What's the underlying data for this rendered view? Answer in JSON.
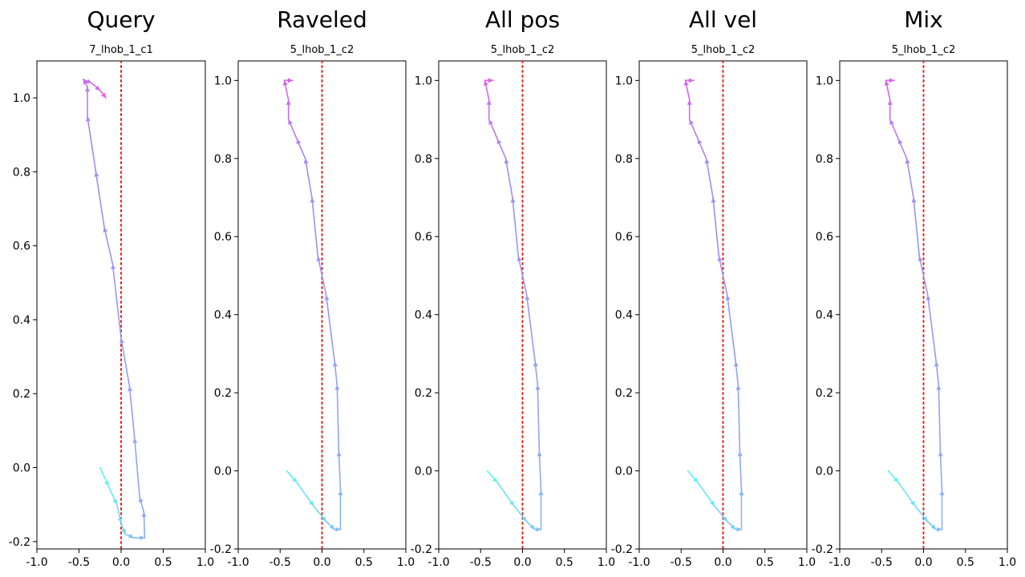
{
  "colors": {
    "reference_line": "#e8241c",
    "trajectory_gradient": [
      "#5ef2f6",
      "#8fa9f8",
      "#9b90f4",
      "#e15cf0"
    ]
  },
  "chart_data": [
    {
      "type": "line",
      "title": "Query",
      "subtitle": "7_lhob_1_c1",
      "xlim": [
        -1.0,
        1.0
      ],
      "ylim": [
        -0.22,
        1.1
      ],
      "xticks": [
        "-1.0",
        "-0.5",
        "0.0",
        "0.5",
        "1.0"
      ],
      "yticks": [
        "-0.2",
        "0.0",
        "0.2",
        "0.4",
        "0.6",
        "0.8",
        "1.0"
      ],
      "reference_x": 0.0,
      "grid": false,
      "points": [
        [
          -0.25,
          0.0
        ],
        [
          -0.15,
          -0.05
        ],
        [
          -0.05,
          -0.1
        ],
        [
          0.0,
          -0.15
        ],
        [
          0.05,
          -0.18
        ],
        [
          0.15,
          -0.19
        ],
        [
          0.28,
          -0.19
        ],
        [
          0.27,
          -0.12
        ],
        [
          0.22,
          -0.08
        ],
        [
          0.16,
          0.08
        ],
        [
          0.1,
          0.22
        ],
        [
          0.0,
          0.35
        ],
        [
          -0.1,
          0.55
        ],
        [
          -0.2,
          0.65
        ],
        [
          -0.3,
          0.8
        ],
        [
          -0.4,
          0.95
        ],
        [
          -0.4,
          1.03
        ],
        [
          -0.45,
          1.05
        ],
        [
          -0.35,
          1.04
        ],
        [
          -0.25,
          1.02
        ],
        [
          -0.18,
          1.0
        ]
      ]
    },
    {
      "type": "line",
      "title": "Raveled",
      "subtitle": "5_lhob_1_c2",
      "xlim": [
        -1.0,
        1.0
      ],
      "ylim": [
        -0.2,
        1.05
      ],
      "xticks": [
        "-1.0",
        "-0.5",
        "0.0",
        "0.5",
        "1.0"
      ],
      "yticks": [
        "-0.2",
        "0.0",
        "0.2",
        "0.4",
        "0.6",
        "0.8",
        "1.0"
      ],
      "reference_x": 0.0,
      "grid": false,
      "points": [
        [
          -0.42,
          0.0
        ],
        [
          -0.3,
          -0.03
        ],
        [
          -0.1,
          -0.09
        ],
        [
          0.05,
          -0.13
        ],
        [
          0.15,
          -0.15
        ],
        [
          0.22,
          -0.15
        ],
        [
          0.22,
          -0.05
        ],
        [
          0.2,
          0.05
        ],
        [
          0.18,
          0.22
        ],
        [
          0.15,
          0.28
        ],
        [
          0.05,
          0.45
        ],
        [
          -0.05,
          0.55
        ],
        [
          -0.12,
          0.7
        ],
        [
          -0.2,
          0.8
        ],
        [
          -0.3,
          0.85
        ],
        [
          -0.4,
          0.9
        ],
        [
          -0.4,
          0.95
        ],
        [
          -0.45,
          1.0
        ],
        [
          -0.35,
          1.0
        ]
      ]
    },
    {
      "type": "line",
      "title": "All pos",
      "subtitle": "5_lhob_1_c2",
      "xlim": [
        -1.0,
        1.0
      ],
      "ylim": [
        -0.2,
        1.05
      ],
      "xticks": [
        "-1.0",
        "-0.5",
        "0.0",
        "0.5",
        "1.0"
      ],
      "yticks": [
        "-0.2",
        "0.0",
        "0.2",
        "0.4",
        "0.6",
        "0.8",
        "1.0"
      ],
      "reference_x": 0.0,
      "grid": false,
      "points": [
        [
          -0.42,
          0.0
        ],
        [
          -0.3,
          -0.03
        ],
        [
          -0.1,
          -0.09
        ],
        [
          0.05,
          -0.13
        ],
        [
          0.15,
          -0.15
        ],
        [
          0.22,
          -0.15
        ],
        [
          0.22,
          -0.05
        ],
        [
          0.2,
          0.05
        ],
        [
          0.18,
          0.22
        ],
        [
          0.15,
          0.28
        ],
        [
          0.05,
          0.45
        ],
        [
          -0.05,
          0.55
        ],
        [
          -0.12,
          0.7
        ],
        [
          -0.2,
          0.8
        ],
        [
          -0.3,
          0.85
        ],
        [
          -0.4,
          0.9
        ],
        [
          -0.4,
          0.95
        ],
        [
          -0.45,
          1.0
        ],
        [
          -0.35,
          1.0
        ]
      ]
    },
    {
      "type": "line",
      "title": "All vel",
      "subtitle": "5_lhob_1_c2",
      "xlim": [
        -1.0,
        1.0
      ],
      "ylim": [
        -0.2,
        1.05
      ],
      "xticks": [
        "-1.0",
        "-0.5",
        "0.0",
        "0.5",
        "1.0"
      ],
      "yticks": [
        "-0.2",
        "0.0",
        "0.2",
        "0.4",
        "0.6",
        "0.8",
        "1.0"
      ],
      "reference_x": 0.0,
      "grid": false,
      "points": [
        [
          -0.42,
          0.0
        ],
        [
          -0.3,
          -0.03
        ],
        [
          -0.1,
          -0.09
        ],
        [
          0.05,
          -0.13
        ],
        [
          0.15,
          -0.15
        ],
        [
          0.22,
          -0.15
        ],
        [
          0.22,
          -0.05
        ],
        [
          0.2,
          0.05
        ],
        [
          0.18,
          0.22
        ],
        [
          0.15,
          0.28
        ],
        [
          0.05,
          0.45
        ],
        [
          -0.05,
          0.55
        ],
        [
          -0.12,
          0.7
        ],
        [
          -0.2,
          0.8
        ],
        [
          -0.3,
          0.85
        ],
        [
          -0.4,
          0.9
        ],
        [
          -0.4,
          0.95
        ],
        [
          -0.45,
          1.0
        ],
        [
          -0.35,
          1.0
        ]
      ]
    },
    {
      "type": "line",
      "title": "Mix",
      "subtitle": "5_lhob_1_c2",
      "xlim": [
        -1.0,
        1.0
      ],
      "ylim": [
        -0.2,
        1.05
      ],
      "xticks": [
        "-1.0",
        "-0.5",
        "0.0",
        "0.5",
        "1.0"
      ],
      "yticks": [
        "-0.2",
        "0.0",
        "0.2",
        "0.4",
        "0.6",
        "0.8",
        "1.0"
      ],
      "reference_x": 0.0,
      "grid": false,
      "points": [
        [
          -0.42,
          0.0
        ],
        [
          -0.3,
          -0.03
        ],
        [
          -0.1,
          -0.09
        ],
        [
          0.05,
          -0.13
        ],
        [
          0.15,
          -0.15
        ],
        [
          0.22,
          -0.15
        ],
        [
          0.22,
          -0.05
        ],
        [
          0.2,
          0.05
        ],
        [
          0.18,
          0.22
        ],
        [
          0.15,
          0.28
        ],
        [
          0.05,
          0.45
        ],
        [
          -0.05,
          0.55
        ],
        [
          -0.12,
          0.7
        ],
        [
          -0.2,
          0.8
        ],
        [
          -0.3,
          0.85
        ],
        [
          -0.4,
          0.9
        ],
        [
          -0.4,
          0.95
        ],
        [
          -0.45,
          1.0
        ],
        [
          -0.35,
          1.0
        ]
      ]
    }
  ]
}
